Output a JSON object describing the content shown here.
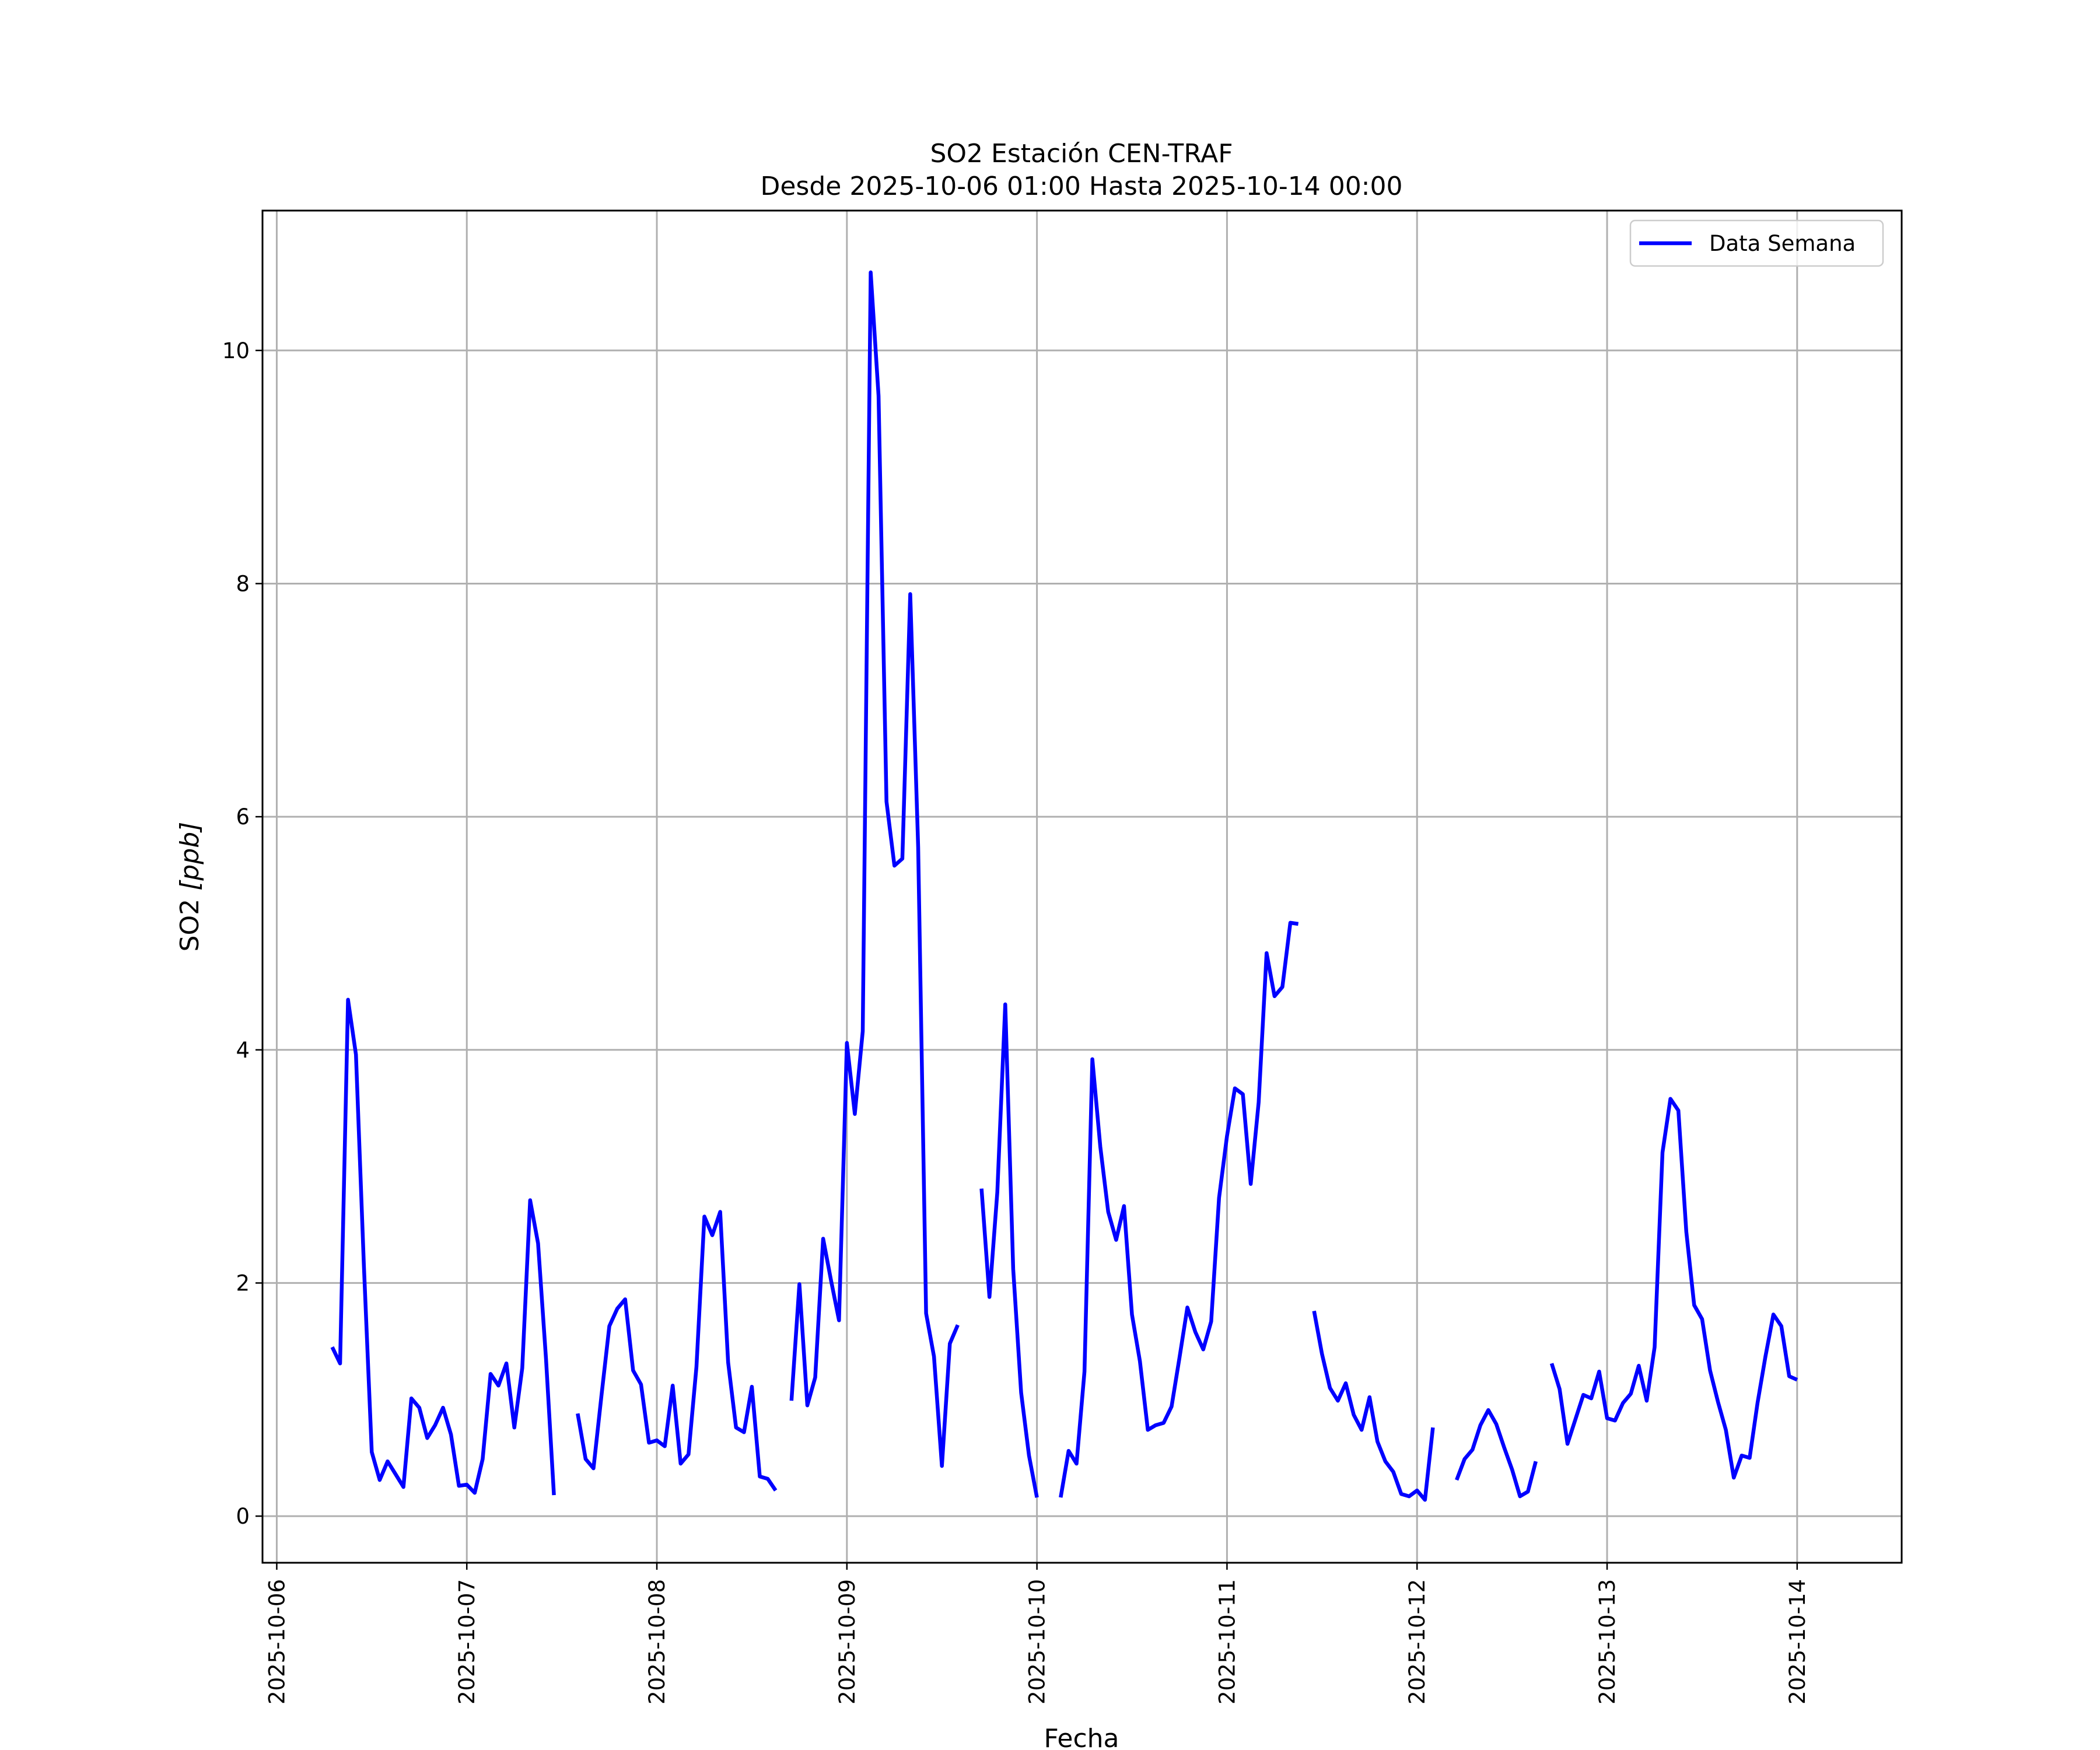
{
  "chart_data": {
    "type": "line",
    "title": "SO2 Estación CEN-TRAF",
    "subtitle": "Desde 2025-10-06 01:00 Hasta 2025-10-14 00:00",
    "xlabel": "Fecha",
    "ylabel": "SO2 [ppb]",
    "ylabel_base": "SO2 ",
    "ylabel_unit": "[ppb]",
    "xlim": [
      "2025-10-05T22:12",
      "2025-10-14T13:12"
    ],
    "ylim": [
      -0.4,
      11.2
    ],
    "grid": true,
    "legend_position": "top-right",
    "x_ticks": [
      "2025-10-06",
      "2025-10-07",
      "2025-10-08",
      "2025-10-09",
      "2025-10-10",
      "2025-10-11",
      "2025-10-12",
      "2025-10-13",
      "2025-10-14"
    ],
    "y_ticks": [
      0,
      2,
      4,
      6,
      8,
      10
    ],
    "series": [
      {
        "name": "Data Semana",
        "color": "#0000ff",
        "segments": [
          [
            [
              "2025-10-06T07:00",
              1.45
            ],
            [
              "2025-10-06T08:00",
              1.31
            ],
            [
              "2025-10-06T09:00",
              4.43
            ],
            [
              "2025-10-06T10:00",
              3.96
            ],
            [
              "2025-10-06T11:00",
              2.15
            ],
            [
              "2025-10-06T12:00",
              0.55
            ],
            [
              "2025-10-06T13:00",
              0.31
            ],
            [
              "2025-10-06T14:00",
              0.47
            ],
            [
              "2025-10-06T15:00",
              0.36
            ],
            [
              "2025-10-06T16:00",
              0.25
            ],
            [
              "2025-10-06T17:00",
              1.01
            ],
            [
              "2025-10-06T18:00",
              0.93
            ],
            [
              "2025-10-06T19:00",
              0.67
            ],
            [
              "2025-10-06T20:00",
              0.78
            ],
            [
              "2025-10-06T21:00",
              0.93
            ],
            [
              "2025-10-06T22:00",
              0.7
            ],
            [
              "2025-10-06T23:00",
              0.26
            ],
            [
              "2025-10-07T00:00",
              0.27
            ],
            [
              "2025-10-07T01:00",
              0.2
            ],
            [
              "2025-10-07T02:00",
              0.49
            ],
            [
              "2025-10-07T03:00",
              1.22
            ],
            [
              "2025-10-07T04:00",
              1.12
            ],
            [
              "2025-10-07T05:00",
              1.31
            ],
            [
              "2025-10-07T06:00",
              0.76
            ],
            [
              "2025-10-07T07:00",
              1.27
            ],
            [
              "2025-10-07T08:00",
              2.71
            ],
            [
              "2025-10-07T09:00",
              2.34
            ],
            [
              "2025-10-07T10:00",
              1.35
            ],
            [
              "2025-10-07T11:00",
              0.18
            ]
          ],
          [
            [
              "2025-10-07T14:00",
              0.88
            ],
            [
              "2025-10-07T15:00",
              0.49
            ],
            [
              "2025-10-07T16:00",
              0.41
            ],
            [
              "2025-10-07T17:00",
              1.03
            ],
            [
              "2025-10-07T18:00",
              1.63
            ],
            [
              "2025-10-07T19:00",
              1.78
            ],
            [
              "2025-10-07T20:00",
              1.86
            ],
            [
              "2025-10-07T21:00",
              1.25
            ],
            [
              "2025-10-07T22:00",
              1.13
            ],
            [
              "2025-10-07T23:00",
              0.63
            ],
            [
              "2025-10-08T00:00",
              0.65
            ],
            [
              "2025-10-08T01:00",
              0.6
            ],
            [
              "2025-10-08T02:00",
              1.12
            ],
            [
              "2025-10-08T03:00",
              0.45
            ],
            [
              "2025-10-08T04:00",
              0.53
            ],
            [
              "2025-10-08T05:00",
              1.28
            ],
            [
              "2025-10-08T06:00",
              2.57
            ],
            [
              "2025-10-08T07:00",
              2.41
            ],
            [
              "2025-10-08T08:00",
              2.61
            ],
            [
              "2025-10-08T09:00",
              1.32
            ],
            [
              "2025-10-08T10:00",
              0.76
            ],
            [
              "2025-10-08T11:00",
              0.72
            ],
            [
              "2025-10-08T12:00",
              1.11
            ],
            [
              "2025-10-08T13:00",
              0.34
            ],
            [
              "2025-10-08T14:00",
              0.32
            ],
            [
              "2025-10-08T15:00",
              0.22
            ]
          ],
          [
            [
              "2025-10-08T17:00",
              0.99
            ],
            [
              "2025-10-08T18:00",
              1.99
            ],
            [
              "2025-10-08T19:00",
              0.95
            ],
            [
              "2025-10-08T20:00",
              1.19
            ],
            [
              "2025-10-08T21:00",
              2.38
            ],
            [
              "2025-10-08T22:00",
              2.02
            ],
            [
              "2025-10-08T23:00",
              1.68
            ],
            [
              "2025-10-09T00:00",
              4.06
            ],
            [
              "2025-10-09T01:00",
              3.45
            ],
            [
              "2025-10-09T02:00",
              4.16
            ],
            [
              "2025-10-09T03:00",
              10.67
            ],
            [
              "2025-10-09T04:00",
              9.61
            ],
            [
              "2025-10-09T05:00",
              6.13
            ],
            [
              "2025-10-09T06:00",
              5.58
            ],
            [
              "2025-10-09T07:00",
              5.64
            ],
            [
              "2025-10-09T08:00",
              7.91
            ],
            [
              "2025-10-09T09:00",
              5.74
            ],
            [
              "2025-10-09T10:00",
              1.74
            ],
            [
              "2025-10-09T11:00",
              1.37
            ],
            [
              "2025-10-09T12:00",
              0.43
            ],
            [
              "2025-10-09T13:00",
              1.48
            ],
            [
              "2025-10-09T14:00",
              1.64
            ]
          ],
          [
            [
              "2025-10-09T17:00",
              2.81
            ],
            [
              "2025-10-09T18:00",
              1.88
            ],
            [
              "2025-10-09T19:00",
              2.78
            ],
            [
              "2025-10-09T20:00",
              4.39
            ],
            [
              "2025-10-09T21:00",
              2.12
            ],
            [
              "2025-10-09T22:00",
              1.06
            ],
            [
              "2025-10-09T23:00",
              0.52
            ],
            [
              "2025-10-10T00:00",
              0.16
            ]
          ],
          [
            [
              "2025-10-10T03:00",
              0.16
            ],
            [
              "2025-10-10T04:00",
              0.56
            ],
            [
              "2025-10-10T05:00",
              0.45
            ],
            [
              "2025-10-10T06:00",
              1.24
            ],
            [
              "2025-10-10T07:00",
              3.92
            ],
            [
              "2025-10-10T08:00",
              3.17
            ],
            [
              "2025-10-10T09:00",
              2.61
            ],
            [
              "2025-10-10T10:00",
              2.37
            ],
            [
              "2025-10-10T11:00",
              2.66
            ],
            [
              "2025-10-10T12:00",
              1.73
            ],
            [
              "2025-10-10T13:00",
              1.33
            ],
            [
              "2025-10-10T14:00",
              0.74
            ],
            [
              "2025-10-10T15:00",
              0.78
            ],
            [
              "2025-10-10T16:00",
              0.8
            ],
            [
              "2025-10-10T17:00",
              0.94
            ],
            [
              "2025-10-10T18:00",
              1.36
            ],
            [
              "2025-10-10T19:00",
              1.79
            ],
            [
              "2025-10-10T20:00",
              1.58
            ],
            [
              "2025-10-10T21:00",
              1.43
            ],
            [
              "2025-10-10T22:00",
              1.67
            ],
            [
              "2025-10-10T23:00",
              2.73
            ],
            [
              "2025-10-11T00:00",
              3.26
            ],
            [
              "2025-10-11T01:00",
              3.67
            ],
            [
              "2025-10-11T02:00",
              3.62
            ],
            [
              "2025-10-11T03:00",
              2.85
            ],
            [
              "2025-10-11T04:00",
              3.55
            ],
            [
              "2025-10-11T05:00",
              4.83
            ],
            [
              "2025-10-11T06:00",
              4.46
            ],
            [
              "2025-10-11T07:00",
              4.54
            ],
            [
              "2025-10-11T08:00",
              5.09
            ],
            [
              "2025-10-11T09:00",
              5.08
            ]
          ],
          [
            [
              "2025-10-11T11:00",
              1.76
            ],
            [
              "2025-10-11T12:00",
              1.39
            ],
            [
              "2025-10-11T13:00",
              1.1
            ],
            [
              "2025-10-11T14:00",
              0.99
            ],
            [
              "2025-10-11T15:00",
              1.14
            ],
            [
              "2025-10-11T16:00",
              0.87
            ],
            [
              "2025-10-11T17:00",
              0.74
            ],
            [
              "2025-10-11T18:00",
              1.02
            ],
            [
              "2025-10-11T19:00",
              0.64
            ],
            [
              "2025-10-11T20:00",
              0.47
            ],
            [
              "2025-10-11T21:00",
              0.38
            ],
            [
              "2025-10-11T22:00",
              0.19
            ],
            [
              "2025-10-11T23:00",
              0.17
            ],
            [
              "2025-10-12T00:00",
              0.22
            ],
            [
              "2025-10-12T01:00",
              0.14
            ],
            [
              "2025-10-12T02:00",
              0.76
            ]
          ],
          [
            [
              "2025-10-12T05:00",
              0.31
            ],
            [
              "2025-10-12T06:00",
              0.49
            ],
            [
              "2025-10-12T07:00",
              0.57
            ],
            [
              "2025-10-12T08:00",
              0.78
            ],
            [
              "2025-10-12T09:00",
              0.91
            ],
            [
              "2025-10-12T10:00",
              0.79
            ],
            [
              "2025-10-12T11:00",
              0.59
            ],
            [
              "2025-10-12T12:00",
              0.4
            ],
            [
              "2025-10-12T13:00",
              0.17
            ],
            [
              "2025-10-12T14:00",
              0.21
            ],
            [
              "2025-10-12T15:00",
              0.47
            ]
          ],
          [
            [
              "2025-10-12T17:00",
              1.31
            ],
            [
              "2025-10-12T18:00",
              1.09
            ],
            [
              "2025-10-12T19:00",
              0.62
            ],
            [
              "2025-10-12T20:00",
              0.83
            ],
            [
              "2025-10-12T21:00",
              1.04
            ],
            [
              "2025-10-12T22:00",
              1.01
            ],
            [
              "2025-10-12T23:00",
              1.24
            ],
            [
              "2025-10-13T00:00",
              0.84
            ],
            [
              "2025-10-13T01:00",
              0.82
            ],
            [
              "2025-10-13T02:00",
              0.97
            ],
            [
              "2025-10-13T03:00",
              1.05
            ],
            [
              "2025-10-13T04:00",
              1.29
            ],
            [
              "2025-10-13T05:00",
              0.99
            ],
            [
              "2025-10-13T06:00",
              1.45
            ],
            [
              "2025-10-13T07:00",
              3.12
            ],
            [
              "2025-10-13T08:00",
              3.58
            ],
            [
              "2025-10-13T09:00",
              3.48
            ],
            [
              "2025-10-13T10:00",
              2.44
            ],
            [
              "2025-10-13T11:00",
              1.81
            ],
            [
              "2025-10-13T12:00",
              1.69
            ],
            [
              "2025-10-13T13:00",
              1.25
            ],
            [
              "2025-10-13T14:00",
              0.98
            ],
            [
              "2025-10-13T15:00",
              0.74
            ],
            [
              "2025-10-13T16:00",
              0.33
            ],
            [
              "2025-10-13T17:00",
              0.52
            ],
            [
              "2025-10-13T18:00",
              0.5
            ],
            [
              "2025-10-13T19:00",
              0.97
            ],
            [
              "2025-10-13T20:00",
              1.37
            ],
            [
              "2025-10-13T21:00",
              1.73
            ],
            [
              "2025-10-13T22:00",
              1.63
            ],
            [
              "2025-10-13T23:00",
              1.2
            ],
            [
              "2025-10-14T00:00",
              1.17
            ]
          ]
        ]
      }
    ]
  }
}
